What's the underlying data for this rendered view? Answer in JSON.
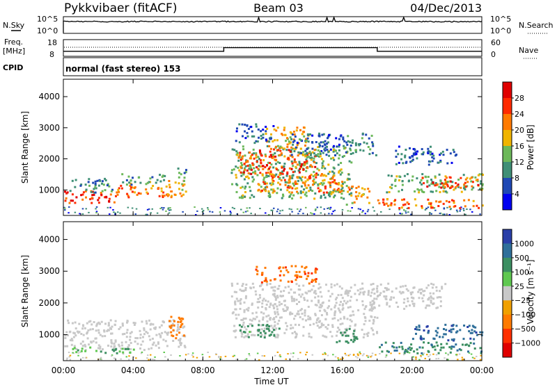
{
  "header": {
    "station": "Pykkvibaer (fitACF)",
    "beam": "Beam 03",
    "date": "04/Dec/2013"
  },
  "noise_panel": {
    "left_label": "N.Sky",
    "right_label": "N.Search",
    "left_ticks": [
      "10^5",
      "10^0"
    ],
    "right_ticks": [
      "10^5",
      "10^0"
    ]
  },
  "freq_panel": {
    "left_label_1": "Freq.",
    "left_label_2": "[MHz]",
    "right_label": "Nave",
    "left_ticks": [
      "18",
      "8"
    ],
    "right_ticks": [
      "60",
      "0"
    ],
    "nave_steps": [
      {
        "from": 0.0,
        "to": 9.2,
        "nave": 18
      },
      {
        "from": 9.2,
        "to": 18.0,
        "nave": 31
      },
      {
        "from": 18.0,
        "to": 24.0,
        "nave": 18
      }
    ]
  },
  "cpid": {
    "label": "CPID",
    "mode": "normal (fast stereo) 153"
  },
  "x_axis": {
    "label": "Time UT",
    "ticks": [
      "00:00",
      "04:00",
      "08:00",
      "12:00",
      "16:00",
      "20:00",
      "00:00"
    ],
    "range_hours": [
      0,
      24
    ]
  },
  "y_axis": {
    "label": "Slant Range [km]",
    "ticks": [
      "1000",
      "2000",
      "3000",
      "4000"
    ],
    "range_km": [
      180,
      4560
    ]
  },
  "power_colorbar": {
    "label": "Power [dB]",
    "ticks": [
      "4",
      "8",
      "12",
      "16",
      "20",
      "24",
      "28"
    ],
    "range": [
      0,
      32
    ],
    "colors": [
      "#0000f0",
      "#1f48b4",
      "#3f8f76",
      "#6cb85a",
      "#f0b400",
      "#ff7a00",
      "#ff2a00",
      "#e00000"
    ]
  },
  "velocity_colorbar": {
    "label": "Velocity [m s⁻¹]",
    "ticks": [
      "1000",
      "500",
      "100",
      "25",
      "−25",
      "−100",
      "−500",
      "−1000"
    ],
    "colors": [
      "#2a3fa8",
      "#2f6f9a",
      "#3c8f62",
      "#5fc850",
      "#c8c8c8",
      "#f0a000",
      "#ff7a00",
      "#ff3000",
      "#e00000"
    ]
  },
  "chart_data": {
    "type": "heatmap",
    "panels": [
      "power",
      "velocity"
    ],
    "power_regions": [
      {
        "t0": 0.0,
        "t1": 3.0,
        "r0": 550,
        "r1": 950,
        "level": 26
      },
      {
        "t0": 0.3,
        "t1": 2.8,
        "r0": 900,
        "r1": 1350,
        "level": 10
      },
      {
        "t0": 3.0,
        "t1": 6.0,
        "r0": 750,
        "r1": 1150,
        "level": 22
      },
      {
        "t0": 3.3,
        "t1": 5.8,
        "r0": 1150,
        "r1": 1500,
        "level": 12
      },
      {
        "t0": 5.8,
        "t1": 7.0,
        "r0": 750,
        "r1": 1300,
        "level": 20
      },
      {
        "t0": 6.4,
        "t1": 7.0,
        "r0": 1250,
        "r1": 1700,
        "level": 11
      },
      {
        "t0": 9.6,
        "t1": 16.5,
        "r0": 700,
        "r1": 2400,
        "level": 13
      },
      {
        "t0": 10.0,
        "t1": 14.5,
        "r0": 1500,
        "r1": 2300,
        "level": 25
      },
      {
        "t0": 11.0,
        "t1": 16.0,
        "r0": 900,
        "r1": 1500,
        "level": 22
      },
      {
        "t0": 11.5,
        "t1": 14.0,
        "r0": 2300,
        "r1": 3000,
        "level": 19
      },
      {
        "t0": 13.0,
        "t1": 18.0,
        "r0": 2100,
        "r1": 2800,
        "level": 8
      },
      {
        "t0": 9.8,
        "t1": 12.0,
        "r0": 2500,
        "r1": 3100,
        "level": 6
      },
      {
        "t0": 18.0,
        "t1": 24.0,
        "r0": 400,
        "r1": 700,
        "level": 23
      },
      {
        "t0": 18.5,
        "t1": 24.0,
        "r0": 900,
        "r1": 1500,
        "level": 13
      },
      {
        "t0": 20.5,
        "t1": 23.8,
        "r0": 1050,
        "r1": 1400,
        "level": 25
      },
      {
        "t0": 19.0,
        "t1": 22.5,
        "r0": 1800,
        "r1": 2400,
        "level": 7
      },
      {
        "t0": 16.2,
        "t1": 17.5,
        "r0": 500,
        "r1": 1100,
        "level": 20
      }
    ],
    "velocity_regions": [
      {
        "t0": 0.0,
        "t1": 7.0,
        "r0": 500,
        "r1": 1450,
        "value": 0
      },
      {
        "t0": 0.3,
        "t1": 4.0,
        "r0": 400,
        "r1": 600,
        "value": 80
      },
      {
        "t0": 6.0,
        "t1": 7.0,
        "r0": 800,
        "r1": 1550,
        "value": -150
      },
      {
        "t0": 9.6,
        "t1": 18.0,
        "r0": 900,
        "r1": 2600,
        "value": 0
      },
      {
        "t0": 10.0,
        "t1": 12.5,
        "r0": 900,
        "r1": 1300,
        "value": 120
      },
      {
        "t0": 11.0,
        "t1": 14.5,
        "r0": 2600,
        "r1": 3150,
        "value": -250
      },
      {
        "t0": 15.5,
        "t1": 16.8,
        "r0": 700,
        "r1": 1200,
        "value": 200
      },
      {
        "t0": 18.0,
        "t1": 24.0,
        "r0": 400,
        "r1": 750,
        "value": 250
      },
      {
        "t0": 20.0,
        "t1": 24.0,
        "r0": 800,
        "r1": 1300,
        "value": 600
      },
      {
        "t0": 17.5,
        "t1": 22.0,
        "r0": 1800,
        "r1": 2600,
        "value": 0
      }
    ]
  }
}
